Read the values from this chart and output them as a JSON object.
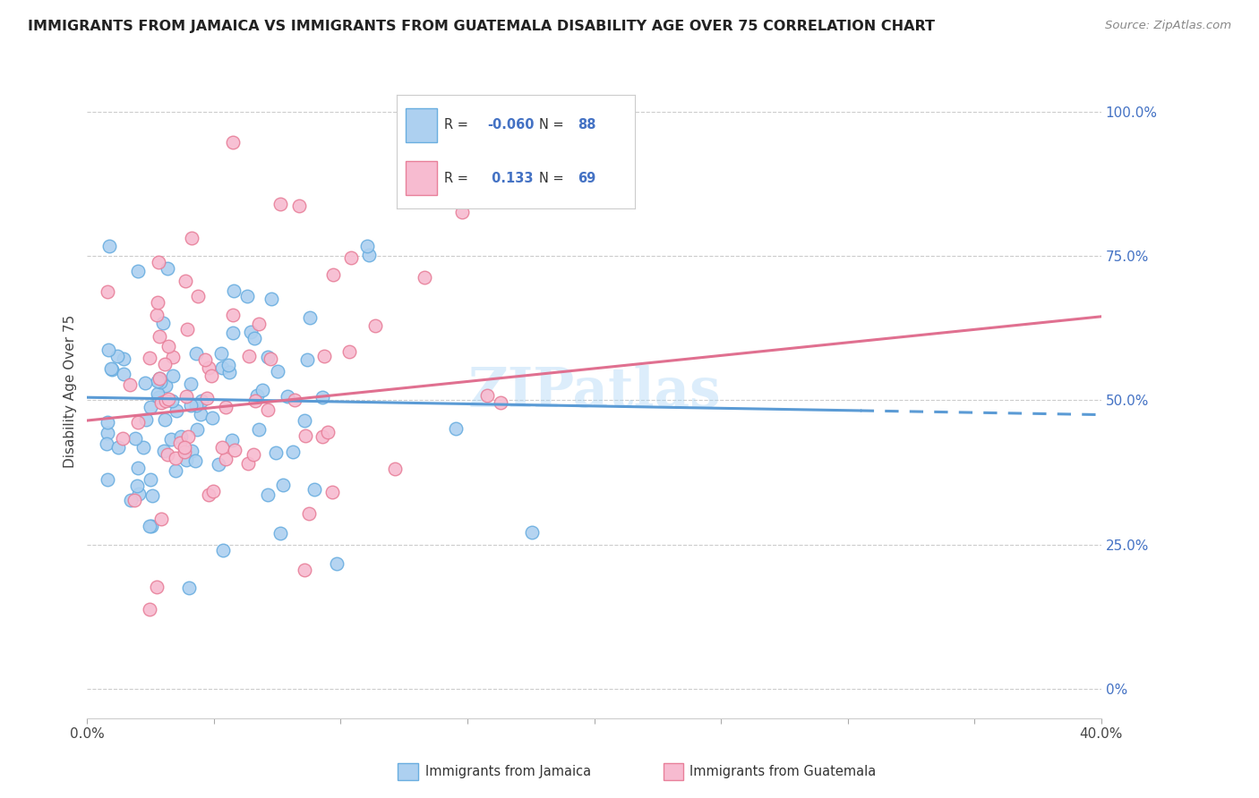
{
  "title": "IMMIGRANTS FROM JAMAICA VS IMMIGRANTS FROM GUATEMALA DISABILITY AGE OVER 75 CORRELATION CHART",
  "source": "Source: ZipAtlas.com",
  "ylabel": "Disability Age Over 75",
  "legend_label1": "Immigrants from Jamaica",
  "legend_label2": "Immigrants from Guatemala",
  "R1": -0.06,
  "N1": 88,
  "R2": 0.133,
  "N2": 69,
  "color1_face": "#ADD0F0",
  "color1_edge": "#6AAEE0",
  "color2_face": "#F7BBD0",
  "color2_edge": "#E8809A",
  "line_color1": "#5B9BD5",
  "line_color2": "#E07090",
  "xmin": 0.0,
  "xmax": 0.4,
  "ymin": 0.0,
  "ymax": 1.0,
  "yticks_right": [
    0.0,
    0.25,
    0.5,
    0.75,
    1.0
  ],
  "ytick_labels_right": [
    "0%",
    "25.0%",
    "50.0%",
    "75.0%",
    "100.0%"
  ],
  "watermark": "ZIPatlas",
  "line1_x0": 0.0,
  "line1_y0": 0.505,
  "line1_x1": 0.4,
  "line1_y1": 0.475,
  "line1_solid_end": 0.305,
  "line2_x0": 0.0,
  "line2_y0": 0.465,
  "line2_x1": 0.4,
  "line2_y1": 0.645
}
